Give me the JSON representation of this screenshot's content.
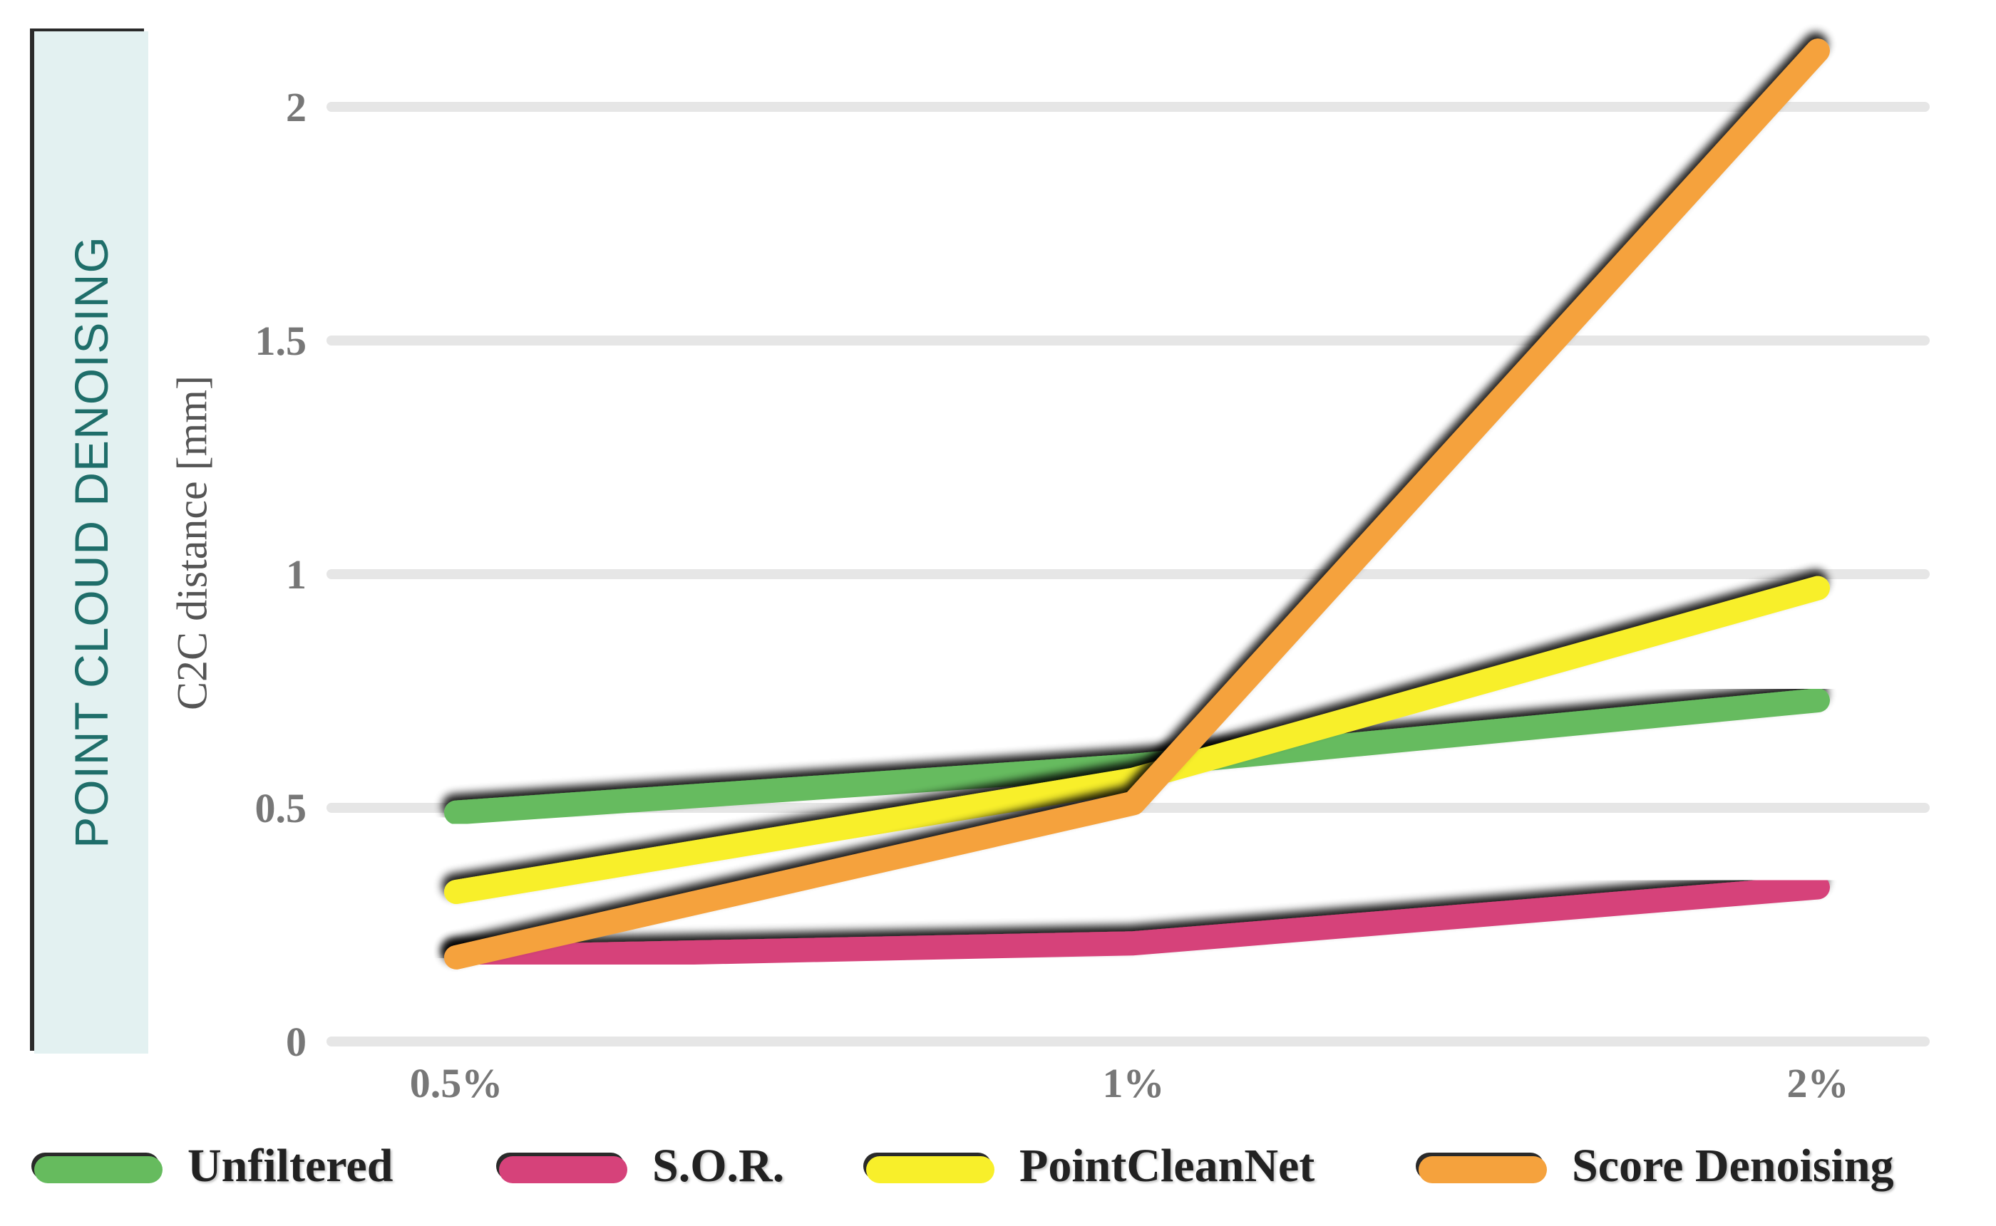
{
  "banner": {
    "text": "POINT CLOUD DENOISING",
    "background": "#e3f1f1",
    "text_color": "#1f6e6a"
  },
  "chart_data": {
    "type": "line",
    "title": "",
    "xlabel": "",
    "ylabel": "C2C distance [mm]",
    "categories": [
      "0.5%",
      "1%",
      "2%"
    ],
    "ylim": [
      0,
      2
    ],
    "yticks": [
      0,
      0.5,
      1,
      1.5,
      2
    ],
    "grid": true,
    "legend_position": "bottom",
    "series": [
      {
        "name": "Unfiltered",
        "color": "#66bb5e",
        "values": [
          0.49,
          0.59,
          0.73
        ]
      },
      {
        "name": "S.O.R.",
        "color": "#d6427a",
        "values": [
          0.18,
          0.21,
          0.33
        ]
      },
      {
        "name": "PointCleanNet",
        "color": "#f8ef2a",
        "values": [
          0.32,
          0.56,
          0.97
        ]
      },
      {
        "name": "Score Denoising",
        "color": "#f5a23d",
        "values": [
          0.18,
          0.51,
          2.12
        ]
      }
    ]
  }
}
